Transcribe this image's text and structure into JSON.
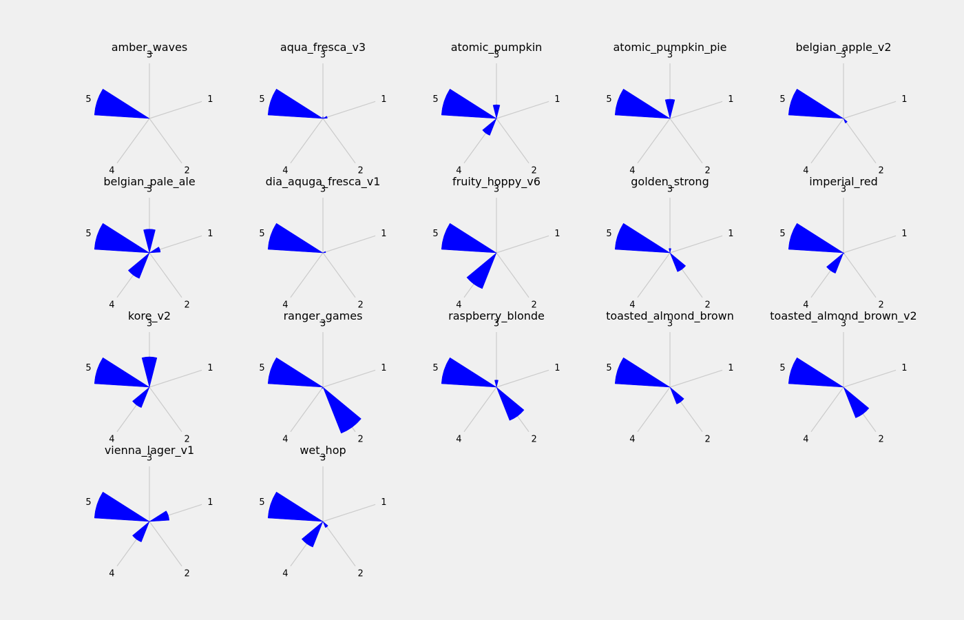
{
  "chart_data": {
    "type": "polar-bar",
    "spoke_labels": [
      "1",
      "2",
      "3",
      "4",
      "5"
    ],
    "bar_color": "#0000ff",
    "grid_color": "#cbcbcb",
    "background_color": "#f0f0f0",
    "rlim": [
      0,
      1
    ],
    "grid": true,
    "panels": [
      {
        "title": "amber_waves",
        "values": [
          0,
          0,
          0,
          0,
          1
        ]
      },
      {
        "title": "aqua_fresca_v3",
        "values": [
          0.08,
          0,
          0.03,
          0,
          1
        ]
      },
      {
        "title": "atomic_pumpkin",
        "values": [
          0,
          0,
          0.25,
          0.33,
          1
        ]
      },
      {
        "title": "atomic_pumpkin_pie",
        "values": [
          0,
          0,
          0.35,
          0,
          1
        ]
      },
      {
        "title": "belgian_apple_v2",
        "values": [
          0,
          0.09,
          0,
          0,
          1
        ]
      },
      {
        "title": "belgian_pale_ale",
        "values": [
          0.2,
          0,
          0.43,
          0.5,
          1
        ]
      },
      {
        "title": "dia_aquga_fresca_v1",
        "values": [
          0.05,
          0,
          0,
          0,
          1
        ]
      },
      {
        "title": "fruity_hoppy_v6",
        "values": [
          0,
          0,
          0,
          0.7,
          1
        ]
      },
      {
        "title": "golden_strong",
        "values": [
          0,
          0.37,
          0.08,
          0,
          1
        ]
      },
      {
        "title": "imperial_red",
        "values": [
          0,
          0.02,
          0,
          0.4,
          1
        ]
      },
      {
        "title": "kore_v2",
        "values": [
          0,
          0,
          0.55,
          0.4,
          1
        ]
      },
      {
        "title": "ranger_games",
        "values": [
          0,
          0.9,
          0,
          0.03,
          1
        ]
      },
      {
        "title": "raspberry_blonde",
        "values": [
          0,
          0.65,
          0.13,
          0,
          1
        ]
      },
      {
        "title": "toasted_almond_brown",
        "values": [
          0,
          0.33,
          0,
          0,
          1
        ]
      },
      {
        "title": "toasted_almond_brown_v2",
        "values": [
          0,
          0.6,
          0,
          0,
          1
        ]
      },
      {
        "title": "vienna_lager_v1",
        "values": [
          0.36,
          0,
          0,
          0.4,
          1
        ]
      },
      {
        "title": "wet_hop",
        "values": [
          0,
          0.12,
          0,
          0.5,
          1
        ]
      }
    ]
  }
}
